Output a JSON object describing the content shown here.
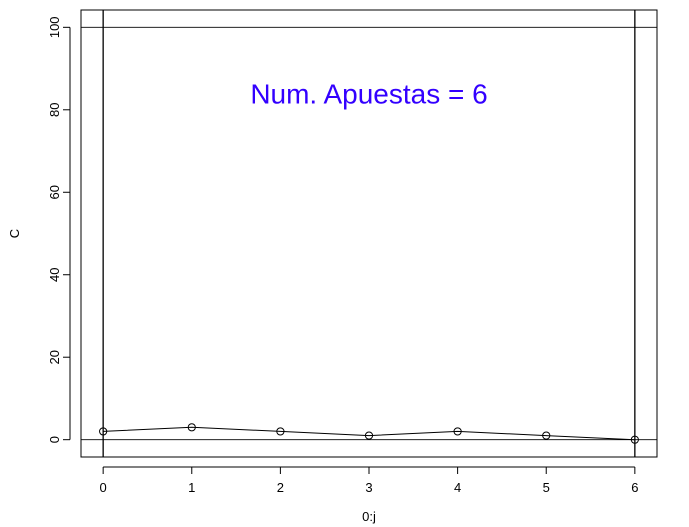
{
  "chart_data": {
    "type": "line",
    "xlabel": "0:j",
    "ylabel": "C",
    "x": [
      0,
      1,
      2,
      3,
      4,
      5,
      6
    ],
    "y": [
      2,
      3,
      2,
      1,
      2,
      1,
      0
    ],
    "xlim": [
      -0.25,
      6.25
    ],
    "ylim": [
      -4.2,
      104.2
    ],
    "x_ticks": [
      "0",
      "1",
      "2",
      "3",
      "4",
      "5",
      "6"
    ],
    "y_ticks": [
      "0",
      "20",
      "40",
      "60",
      "80",
      "100"
    ],
    "hlines": [
      0,
      100
    ],
    "vlines": [
      0,
      6
    ],
    "annotation": {
      "text": "Num. Apuestas = 6",
      "color": "#3300ff",
      "x": 3,
      "y": 84
    },
    "line_color": "#000000",
    "marker": "open-circle",
    "grid": false
  }
}
